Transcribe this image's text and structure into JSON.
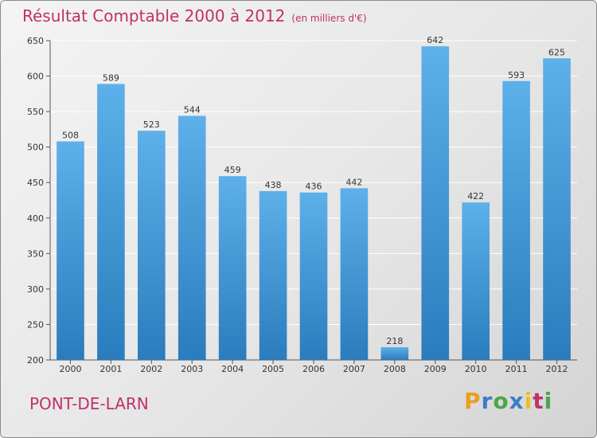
{
  "header": {
    "title": "Résultat Comptable 2000 à 2012",
    "subtitle": "(en milliers d'€)"
  },
  "footer": {
    "commune": "PONT-DE-LARN",
    "logo_letters": [
      "P",
      "r",
      "o",
      "x",
      "i",
      "t",
      "i"
    ]
  },
  "colors": {
    "bar_top": "#5eb0ea",
    "bar_bottom": "#2a7cbd",
    "title": "#c0306a",
    "grid": "#ffffff"
  },
  "chart_data": {
    "type": "bar",
    "title": "Résultat Comptable 2000 à 2012",
    "xlabel": "",
    "ylabel": "",
    "categories": [
      "2000",
      "2001",
      "2002",
      "2003",
      "2004",
      "2005",
      "2006",
      "2007",
      "2008",
      "2009",
      "2010",
      "2011",
      "2012"
    ],
    "values": [
      508,
      589,
      523,
      544,
      459,
      438,
      436,
      442,
      218,
      642,
      422,
      593,
      625
    ],
    "ylim": [
      200,
      650
    ],
    "yticks": [
      200,
      250,
      300,
      350,
      400,
      450,
      500,
      550,
      600,
      650
    ],
    "grid": true
  }
}
